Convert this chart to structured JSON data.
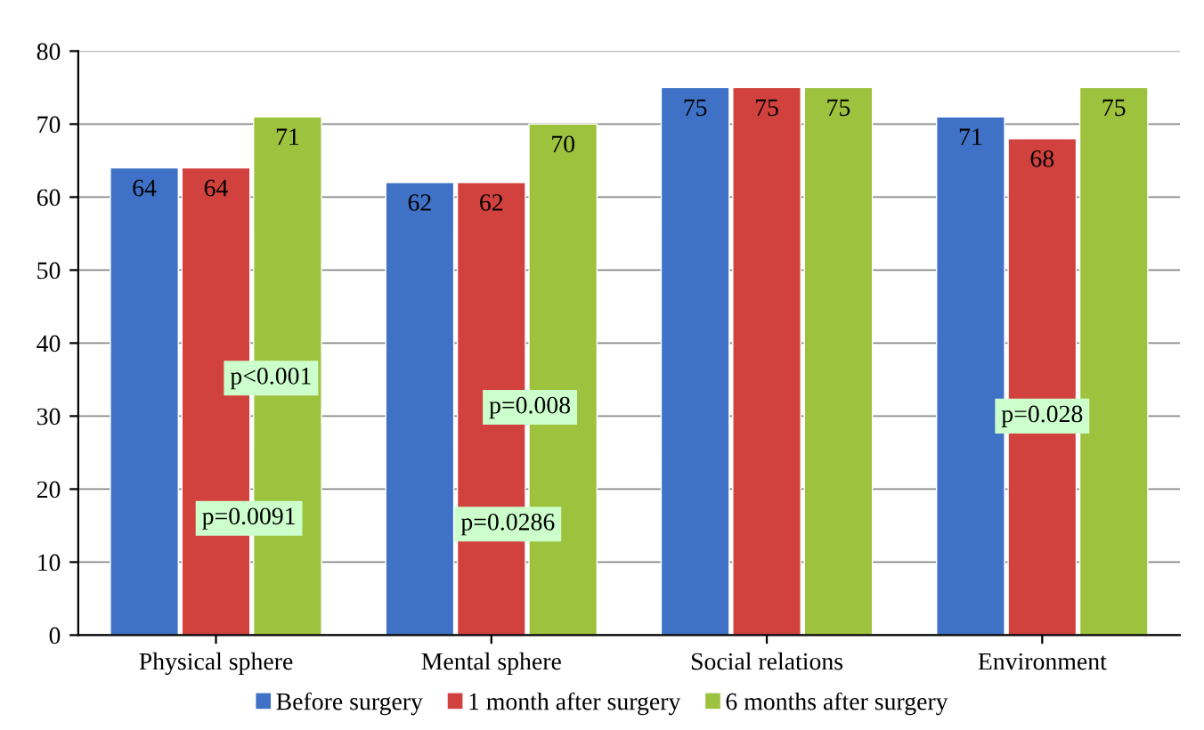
{
  "chart_data": {
    "type": "bar",
    "categories": [
      "Physical sphere",
      "Mental sphere",
      "Social relations",
      "Environment"
    ],
    "series": [
      {
        "name": "Before surgery",
        "color": "#3f72c6",
        "values": [
          64,
          62,
          75,
          71
        ]
      },
      {
        "name": "1 month after surgery",
        "color": "#d1413d",
        "values": [
          64,
          62,
          75,
          68
        ]
      },
      {
        "name": "6 months after surgery",
        "color": "#9cc23e",
        "values": [
          71,
          70,
          75,
          75
        ]
      }
    ],
    "ylim": [
      0,
      80
    ],
    "yticks": [
      0,
      10,
      20,
      30,
      40,
      50,
      60,
      70,
      80
    ],
    "grid": "y",
    "legend": "bottom",
    "data_labels": true,
    "annotations": [
      "p<0.001",
      "p=0.0091",
      "p=0.0286",
      "p=0.008",
      "p=0.028"
    ]
  }
}
